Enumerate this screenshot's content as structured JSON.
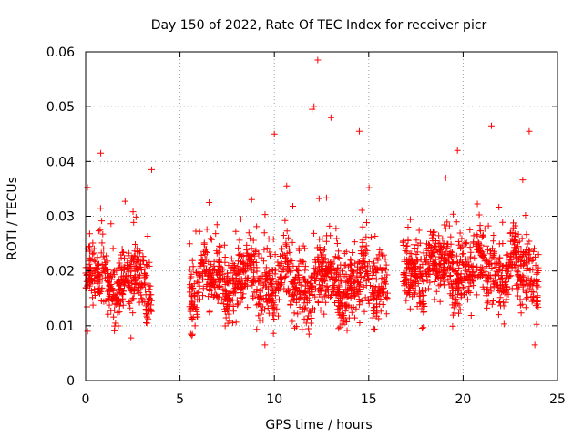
{
  "chart_data": {
    "type": "scatter",
    "title": "Day 150 of 2022, Rate Of TEC Index for receiver picr",
    "xlabel": "GPS time / hours",
    "ylabel": "ROTI / TECUs",
    "xlim": [
      0,
      25
    ],
    "ylim": [
      0,
      0.06
    ],
    "x_ticks": [
      0,
      5,
      10,
      15,
      20,
      25
    ],
    "y_ticks": [
      0,
      0.01,
      0.02,
      0.03,
      0.04,
      0.05,
      0.06
    ],
    "grid": true,
    "marker": "+",
    "color": "#ff0000",
    "segments": [
      {
        "x_start": 0.0,
        "x_end": 3.5,
        "median": 0.018,
        "spread": 0.005
      },
      {
        "x_start": 5.5,
        "x_end": 16.0,
        "median": 0.018,
        "spread": 0.006
      },
      {
        "x_start": 16.8,
        "x_end": 24.0,
        "median": 0.02,
        "spread": 0.006
      }
    ],
    "notable_points": [
      {
        "x": 12.3,
        "y": 0.0585
      },
      {
        "x": 12.1,
        "y": 0.05
      },
      {
        "x": 12.0,
        "y": 0.0495
      },
      {
        "x": 13.0,
        "y": 0.048
      },
      {
        "x": 21.5,
        "y": 0.0465
      },
      {
        "x": 14.5,
        "y": 0.0455
      },
      {
        "x": 23.5,
        "y": 0.0455
      },
      {
        "x": 10.0,
        "y": 0.045
      },
      {
        "x": 0.8,
        "y": 0.0415
      },
      {
        "x": 19.7,
        "y": 0.042
      },
      {
        "x": 3.5,
        "y": 0.0385
      },
      {
        "x": 9.5,
        "y": 0.0065
      },
      {
        "x": 2.4,
        "y": 0.0078
      },
      {
        "x": 23.8,
        "y": 0.0065
      },
      {
        "x": 0.1,
        "y": 0.009
      }
    ]
  }
}
